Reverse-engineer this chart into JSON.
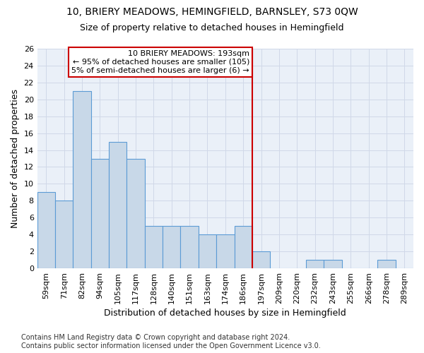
{
  "title1": "10, BRIERY MEADOWS, HEMINGFIELD, BARNSLEY, S73 0QW",
  "title2": "Size of property relative to detached houses in Hemingfield",
  "xlabel": "Distribution of detached houses by size in Hemingfield",
  "ylabel": "Number of detached properties",
  "categories": [
    "59sqm",
    "71sqm",
    "82sqm",
    "94sqm",
    "105sqm",
    "117sqm",
    "128sqm",
    "140sqm",
    "151sqm",
    "163sqm",
    "174sqm",
    "186sqm",
    "197sqm",
    "209sqm",
    "220sqm",
    "232sqm",
    "243sqm",
    "255sqm",
    "266sqm",
    "278sqm",
    "289sqm"
  ],
  "values": [
    9,
    8,
    21,
    13,
    15,
    13,
    5,
    5,
    5,
    4,
    4,
    5,
    2,
    0,
    0,
    1,
    1,
    0,
    0,
    1,
    0
  ],
  "bar_color": "#c8d8e8",
  "bar_edge_color": "#5b9bd5",
  "vline_x": 11.5,
  "vline_color": "#cc0000",
  "annotation_text": "10 BRIERY MEADOWS: 193sqm\n← 95% of detached houses are smaller (105)\n5% of semi-detached houses are larger (6) →",
  "annotation_box_color": "#ffffff",
  "annotation_box_edge_color": "#cc0000",
  "ylim": [
    0,
    26
  ],
  "yticks": [
    0,
    2,
    4,
    6,
    8,
    10,
    12,
    14,
    16,
    18,
    20,
    22,
    24,
    26
  ],
  "grid_color": "#d0d8e8",
  "background_color": "#eaf0f8",
  "footer_text": "Contains HM Land Registry data © Crown copyright and database right 2024.\nContains public sector information licensed under the Open Government Licence v3.0.",
  "title1_fontsize": 10,
  "title2_fontsize": 9,
  "xlabel_fontsize": 9,
  "ylabel_fontsize": 9,
  "tick_fontsize": 8,
  "footer_fontsize": 7,
  "annotation_fontsize": 8
}
